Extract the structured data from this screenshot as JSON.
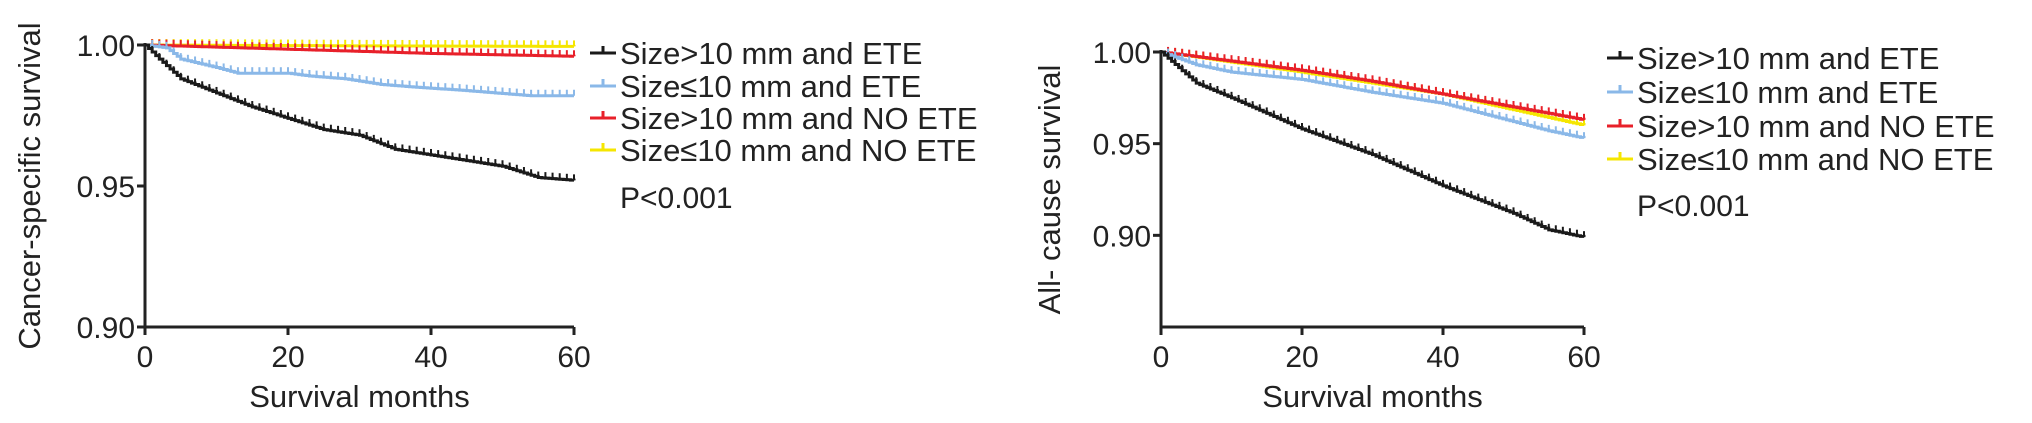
{
  "chart_data": [
    {
      "type": "line",
      "ylabel": "Cancer-specific survival",
      "xlabel": "Survival months",
      "xlim": [
        0,
        60
      ],
      "ylim": [
        0.9,
        1.0
      ],
      "xticks": [
        "0",
        "20",
        "40",
        "60"
      ],
      "yticks": [
        "0.90",
        "0.95",
        "1.00"
      ],
      "legend_placement": "right",
      "annotation": "P<0.001",
      "grid": false,
      "series": [
        {
          "name": "Size>10 mm and ETE",
          "color": "#1a1a1a",
          "x": [
            0,
            2,
            5,
            10,
            15,
            20,
            25,
            30,
            35,
            40,
            45,
            50,
            55,
            60
          ],
          "y": [
            1.0,
            0.995,
            0.988,
            0.983,
            0.978,
            0.974,
            0.97,
            0.968,
            0.963,
            0.961,
            0.959,
            0.957,
            0.953,
            0.952
          ]
        },
        {
          "name": "Size≤10 mm and ETE",
          "color": "#8ab8e8",
          "x": [
            0,
            3,
            5,
            10,
            13,
            20,
            23,
            28,
            33,
            38,
            44,
            54,
            60
          ],
          "y": [
            1.0,
            0.999,
            0.995,
            0.992,
            0.99,
            0.99,
            0.989,
            0.988,
            0.986,
            0.985,
            0.984,
            0.982,
            0.982
          ]
        },
        {
          "name": "Size>10 mm and NO ETE",
          "color": "#e8202a",
          "x": [
            0,
            20,
            40,
            60
          ],
          "y": [
            1.0,
            0.9985,
            0.997,
            0.996
          ]
        },
        {
          "name": "Size≤10 mm and NO ETE",
          "color": "#f5e600",
          "x": [
            0,
            30,
            60
          ],
          "y": [
            1.0,
            0.9997,
            0.9995
          ]
        }
      ]
    },
    {
      "type": "line",
      "ylabel": "All- cause survival",
      "xlabel": "Survival months",
      "xlim": [
        0,
        60
      ],
      "ylim": [
        0.85,
        1.0
      ],
      "xticks": [
        "0",
        "20",
        "40",
        "60"
      ],
      "yticks": [
        "0.90",
        "0.95",
        "1.00"
      ],
      "legend_placement": "right",
      "annotation": "P<0.001",
      "grid": false,
      "series": [
        {
          "name": "Size>10 mm and ETE",
          "color": "#1a1a1a",
          "x": [
            0,
            5,
            10,
            20,
            30,
            40,
            50,
            55,
            60
          ],
          "y": [
            1.0,
            0.983,
            0.975,
            0.958,
            0.944,
            0.927,
            0.912,
            0.903,
            0.899
          ]
        },
        {
          "name": "Size≤10 mm and ETE",
          "color": "#8ab8e8",
          "x": [
            0,
            5,
            10,
            20,
            30,
            40,
            50,
            55,
            60
          ],
          "y": [
            1.0,
            0.993,
            0.989,
            0.985,
            0.978,
            0.972,
            0.962,
            0.957,
            0.953
          ]
        },
        {
          "name": "Size>10 mm and NO ETE",
          "color": "#e8202a",
          "x": [
            0,
            10,
            20,
            30,
            40,
            50,
            60
          ],
          "y": [
            1.0,
            0.995,
            0.99,
            0.984,
            0.977,
            0.97,
            0.963
          ]
        },
        {
          "name": "Size≤10 mm and NO ETE",
          "color": "#f5e600",
          "x": [
            0,
            20,
            40,
            60
          ],
          "y": [
            1.0,
            0.989,
            0.977,
            0.96
          ]
        }
      ]
    }
  ]
}
